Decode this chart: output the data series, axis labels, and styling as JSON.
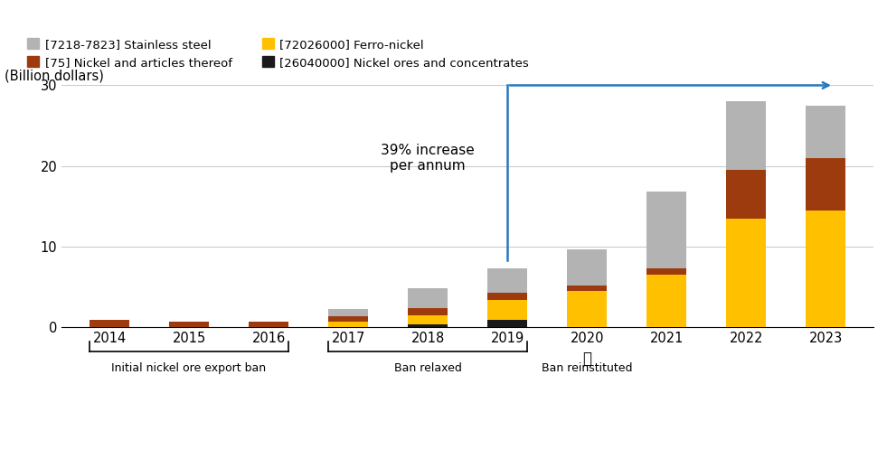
{
  "years": [
    2014,
    2015,
    2016,
    2017,
    2018,
    2019,
    2020,
    2021,
    2022,
    2023
  ],
  "stainless_steel": [
    0.0,
    0.0,
    0.0,
    0.9,
    2.5,
    3.0,
    4.5,
    9.5,
    8.5,
    6.5
  ],
  "nickel_articles": [
    0.9,
    0.7,
    0.7,
    0.7,
    0.9,
    0.9,
    0.7,
    0.8,
    6.0,
    6.5
  ],
  "ferro_nickel": [
    0.0,
    0.0,
    0.0,
    0.7,
    1.1,
    2.5,
    4.5,
    6.5,
    13.5,
    14.5
  ],
  "nickel_ores": [
    0.0,
    0.0,
    0.0,
    0.0,
    0.4,
    0.9,
    0.0,
    0.0,
    0.0,
    0.0
  ],
  "colors": {
    "stainless_steel": "#b3b3b3",
    "nickel_articles": "#9e3b0e",
    "ferro_nickel": "#ffc000",
    "nickel_ores": "#1a1a1a"
  },
  "ylim": [
    0,
    30
  ],
  "yticks": [
    0,
    10,
    20,
    30
  ],
  "ylabel": "(Billion dollars)",
  "annotation_text": "39% increase\nper annum",
  "background_color": "#ffffff",
  "arrow_color": "#2878be",
  "legend_labels": [
    "[7218-7823] Stainless steel",
    "[75] Nickel and articles thereof",
    "[72026000] Ferro-nickel",
    "[26040000] Nickel ores and concentrates"
  ],
  "bracket_groups": [
    {
      "years_idx": [
        0,
        2
      ],
      "label": "Initial nickel ore export ban"
    },
    {
      "years_idx": [
        3,
        5
      ],
      "label": "Ban relaxed"
    }
  ],
  "lock_year_idx": 6,
  "lock_label": "Ban reinstituted"
}
